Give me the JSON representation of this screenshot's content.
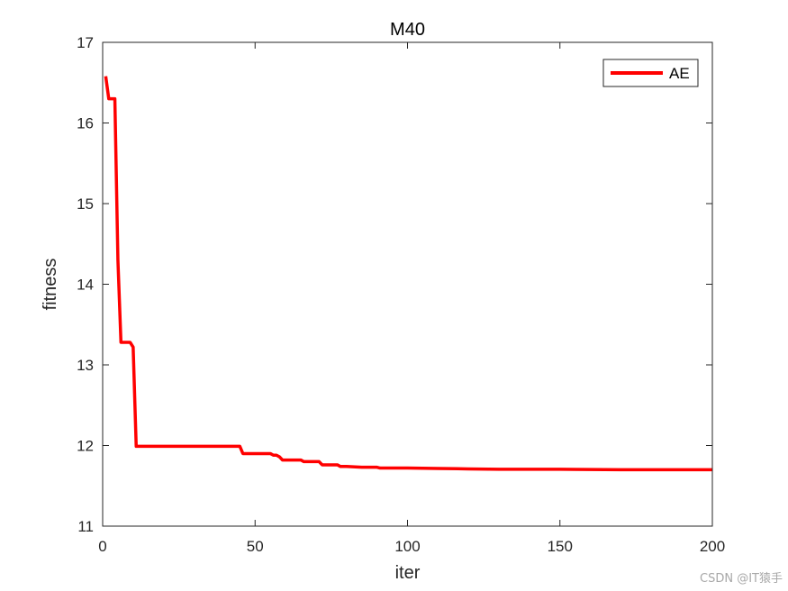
{
  "chart_data": {
    "type": "line",
    "title": "M40",
    "xlabel": "iter",
    "ylabel": "fitness",
    "xlim": [
      0,
      200
    ],
    "ylim": [
      11,
      17
    ],
    "xticks": [
      0,
      50,
      100,
      150,
      200
    ],
    "yticks": [
      11,
      12,
      13,
      14,
      15,
      16,
      17
    ],
    "grid": false,
    "legend_position": "top-right",
    "series": [
      {
        "name": "AE",
        "color": "#ff0000",
        "x": [
          1,
          2,
          3,
          4,
          5,
          6,
          7,
          8,
          9,
          10,
          11,
          12,
          20,
          30,
          40,
          45,
          46,
          47,
          50,
          55,
          56,
          57,
          58,
          59,
          60,
          62,
          65,
          66,
          70,
          71,
          72,
          75,
          77,
          78,
          80,
          85,
          90,
          91,
          95,
          100,
          110,
          120,
          130,
          150,
          170,
          200
        ],
        "y": [
          16.58,
          16.3,
          16.3,
          16.3,
          14.3,
          13.28,
          13.28,
          13.28,
          13.28,
          13.22,
          11.99,
          11.99,
          11.99,
          11.99,
          11.99,
          11.99,
          11.9,
          11.9,
          11.9,
          11.9,
          11.88,
          11.88,
          11.86,
          11.82,
          11.82,
          11.82,
          11.82,
          11.8,
          11.8,
          11.8,
          11.76,
          11.76,
          11.76,
          11.74,
          11.74,
          11.73,
          11.73,
          11.72,
          11.72,
          11.72,
          11.715,
          11.71,
          11.705,
          11.705,
          11.7,
          11.7
        ]
      }
    ]
  },
  "watermark": "CSDN @IT猿手"
}
